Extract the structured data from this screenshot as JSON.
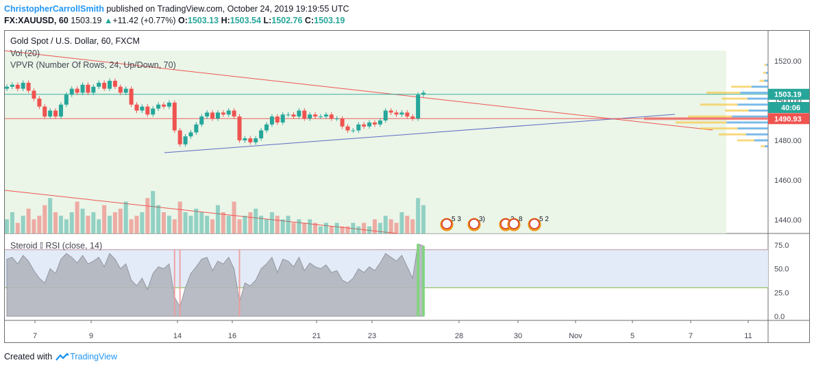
{
  "header": {
    "author": "ChristopherCarrollSmith",
    "published_text": "published on TradingView.com, October 24, 2019 19:19:55 UTC",
    "symbol": "FX:XAUUSD, 60",
    "last": "1503.19",
    "change": "+11.42 (+0.77%)",
    "open_label": "O:",
    "open": "1503.13",
    "high_label": "H:",
    "high": "1503.54",
    "low_label": "L:",
    "low": "1502.76",
    "close_label": "C:",
    "close": "1503.19"
  },
  "legend": {
    "title": "Gold Spot / U.S. Dollar, 60, FXCM",
    "volume": "Vol (20)",
    "vpvr": "VPVR (Number Of Rows, 24, Up/Down, 70)",
    "rsi": "Steroid 𝕀 RSI (close, 14)"
  },
  "footer": {
    "created_with": "Created with",
    "brand": "TradingView"
  },
  "colors": {
    "up": "#26a69a",
    "down": "#ef5350",
    "accent": "#2196f3",
    "rsi_fill": "#b2b5be"
  },
  "events": [
    "5 3",
    "3)",
    "2",
    "8",
    "5 2"
  ],
  "chart_data": [
    {
      "type": "candlestick",
      "title": "Gold Spot / U.S. Dollar, 60, FXCM",
      "y_ticks": [
        1520,
        1500,
        1480,
        1460,
        1440
      ],
      "ylim": [
        1436,
        1528
      ],
      "x_ticks": [
        "7",
        "9",
        "14",
        "16",
        "21",
        "23",
        "28",
        "30",
        "Nov",
        "5",
        "7",
        "11"
      ],
      "price_labels": [
        {
          "value": 1503.19,
          "text": "1503.19",
          "color": "#26a69a"
        },
        {
          "value": 1500.5,
          "text": "40:06",
          "color": "#26a69a"
        },
        {
          "value": 1490.93,
          "text": "1490.93",
          "color": "#ef5350"
        }
      ],
      "horizontal_levels": [
        {
          "value": 1490.93,
          "color": "#ef5350"
        },
        {
          "value": 1503.19,
          "color": "#26a69a"
        }
      ],
      "price_path": [
        1507,
        1508,
        1506,
        1509,
        1505,
        1501,
        1497,
        1492,
        1495,
        1492,
        1498,
        1503,
        1506,
        1504,
        1508,
        1504,
        1507,
        1509,
        1506,
        1510,
        1507,
        1504,
        1506,
        1498,
        1495,
        1497,
        1493,
        1496,
        1498,
        1497,
        1499,
        1485,
        1478,
        1482,
        1484,
        1488,
        1492,
        1494,
        1491,
        1494,
        1493,
        1495,
        1492,
        1480,
        1481,
        1479,
        1481,
        1485,
        1488,
        1492,
        1489,
        1493,
        1493,
        1492,
        1495,
        1491,
        1493,
        1492,
        1492,
        1493,
        1491,
        1491,
        1487,
        1485,
        1485,
        1488,
        1487,
        1489,
        1488,
        1490,
        1495,
        1494,
        1493,
        1494,
        1492,
        1491,
        1503,
        1504
      ],
      "volume": [
        4,
        6,
        3,
        5,
        7,
        4,
        5,
        8,
        10,
        6,
        5,
        4,
        6,
        9,
        7,
        5,
        6,
        4,
        8,
        5,
        6,
        7,
        9,
        4,
        5,
        6,
        10,
        12,
        8,
        6,
        5,
        4,
        9,
        6,
        5,
        7,
        6,
        5,
        4,
        8,
        6,
        5,
        9,
        4,
        5,
        6,
        7,
        5,
        4,
        6,
        5,
        4,
        5,
        3,
        4,
        3,
        4,
        3,
        2,
        3,
        2,
        3,
        2,
        2,
        3,
        2,
        3,
        2,
        4,
        3,
        5,
        4,
        3,
        6,
        5,
        4,
        10,
        8
      ]
    },
    {
      "type": "area",
      "title": "Steroid 𝕀 RSI (close, 14)",
      "y_ticks": [
        75.0,
        50.0,
        25.0,
        0.0
      ],
      "ylim": [
        -5,
        80
      ],
      "overbought": 70,
      "oversold": 30,
      "values": [
        60,
        62,
        55,
        64,
        58,
        48,
        40,
        35,
        50,
        45,
        60,
        66,
        62,
        56,
        64,
        55,
        58,
        62,
        52,
        66,
        60,
        50,
        55,
        38,
        32,
        40,
        28,
        45,
        52,
        50,
        55,
        20,
        10,
        30,
        45,
        52,
        60,
        62,
        48,
        58,
        55,
        62,
        50,
        15,
        35,
        32,
        38,
        50,
        55,
        62,
        46,
        60,
        58,
        52,
        62,
        48,
        56,
        52,
        50,
        54,
        46,
        48,
        38,
        35,
        40,
        50,
        46,
        52,
        48,
        56,
        66,
        62,
        58,
        64,
        52,
        40,
        76,
        74
      ]
    }
  ]
}
